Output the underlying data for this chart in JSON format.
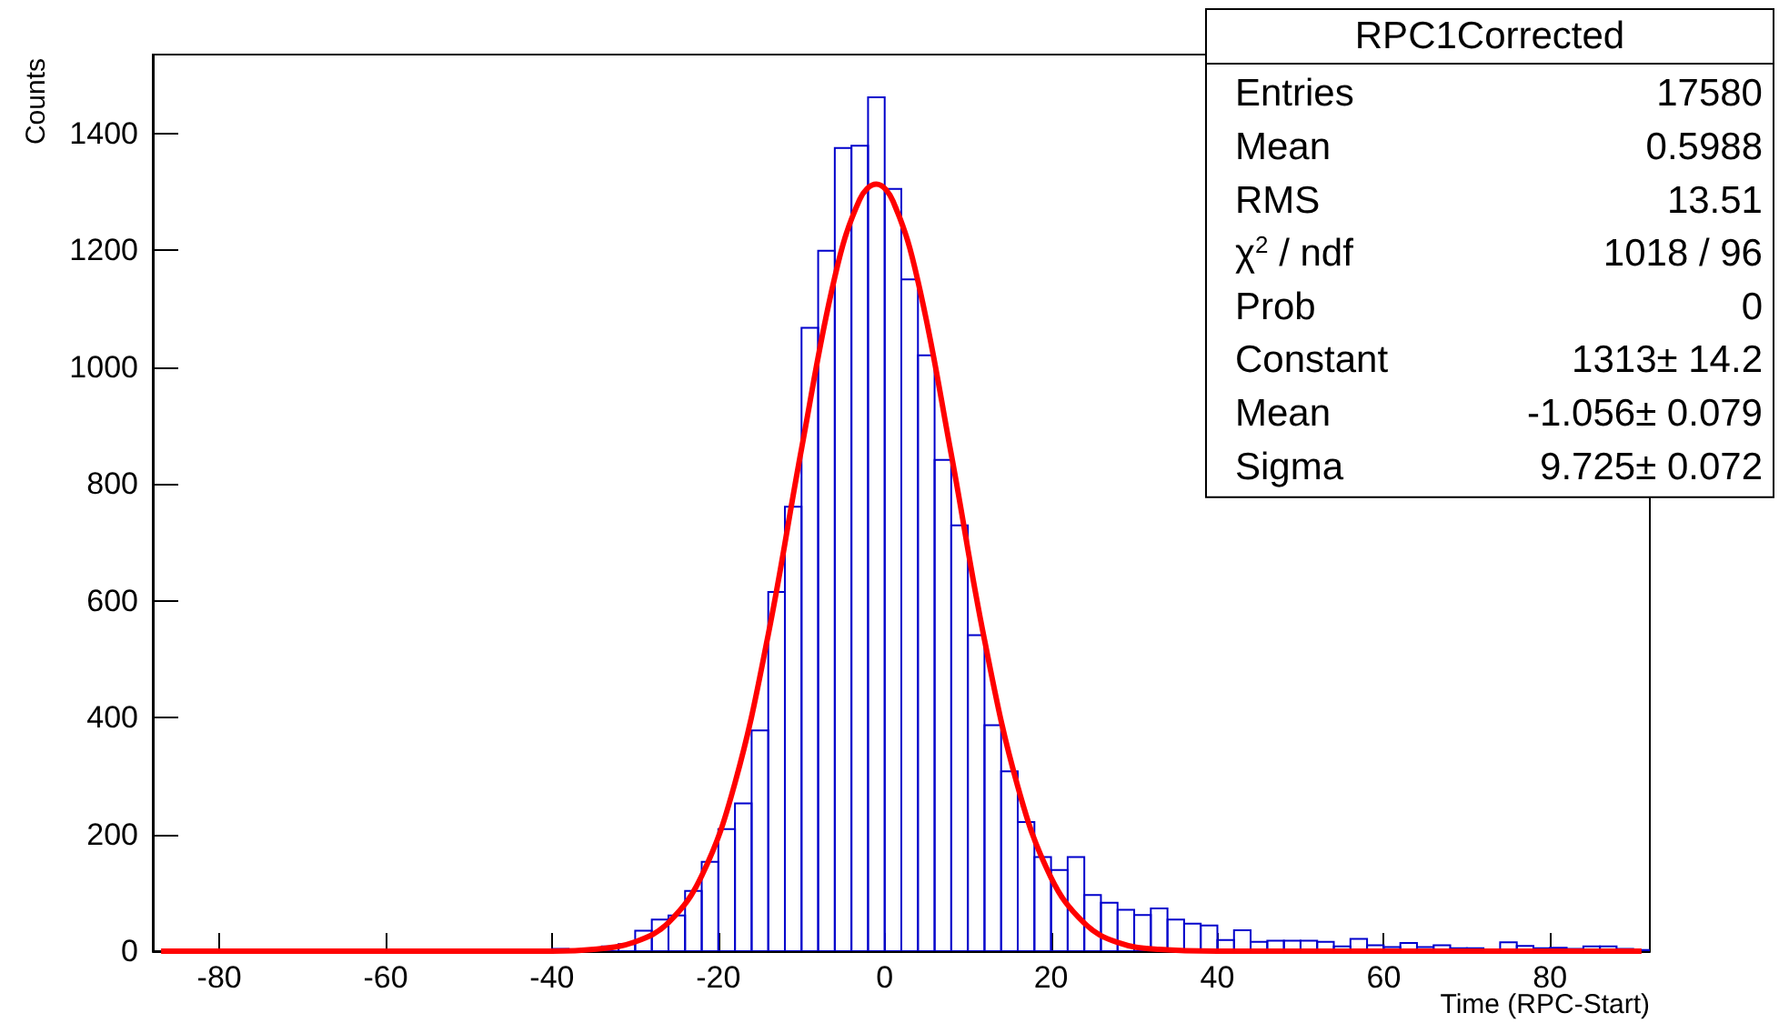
{
  "chart_data": {
    "type": "histogram",
    "title": "RPC1Corrected",
    "xlabel": "Time (RPC-Start)",
    "ylabel": "Counts",
    "bins": [
      -88,
      -86,
      -84,
      -82,
      -80,
      -78,
      -76,
      -74,
      -72,
      -70,
      -68,
      -66,
      -64,
      -62,
      -60,
      -58,
      -56,
      -54,
      -52,
      -50,
      -48,
      -46,
      -44,
      -42,
      -40,
      -38,
      -36,
      -34,
      -32,
      -30,
      -28,
      -26,
      -24,
      -22,
      -20,
      -18,
      -16,
      -14,
      -12,
      -10,
      -8,
      -6,
      -4,
      -2,
      0,
      2,
      4,
      6,
      8,
      10,
      12,
      14,
      16,
      18,
      20,
      22,
      24,
      26,
      28,
      30,
      32,
      34,
      36,
      38,
      40,
      42,
      44,
      46,
      48,
      50,
      52,
      54,
      56,
      58,
      60,
      62,
      64,
      66,
      68,
      70,
      72,
      74,
      76,
      78,
      80,
      82,
      84,
      86,
      88,
      90,
      92
    ],
    "values": [
      null,
      null,
      null,
      null,
      null,
      null,
      null,
      null,
      null,
      null,
      null,
      null,
      null,
      null,
      null,
      null,
      null,
      null,
      null,
      null,
      null,
      null,
      3,
      3,
      4,
      null,
      null,
      8,
      12,
      35,
      54,
      61,
      103,
      153,
      209,
      253,
      378,
      615,
      761,
      1067,
      1199,
      1375,
      1379,
      1462,
      1305,
      1150,
      1020,
      841,
      729,
      541,
      387,
      308,
      221,
      161,
      139,
      161,
      96,
      83,
      71,
      62,
      73,
      54,
      47,
      44,
      19,
      36,
      16,
      18,
      18,
      18,
      16,
      8,
      21,
      10,
      7,
      14,
      7,
      10,
      5,
      5,
      3,
      15,
      9,
      5,
      6,
      4,
      8,
      8,
      4,
      2
    ],
    "color": "#0000cc",
    "series": [
      {
        "type": "line",
        "color": "#ff0000",
        "x": [
          -87,
          -60,
          -40,
          -35,
          -30,
          -26,
          -22,
          -18,
          -14,
          -10,
          -6,
          -3,
          -1,
          1,
          4,
          8,
          12,
          16,
          20,
          24,
          28,
          33,
          40,
          60,
          91
        ],
        "values": [
          0,
          0,
          0,
          3,
          16,
          49,
          129,
          288,
          542,
          860,
          1154,
          1287,
          1313,
          1284,
          1147,
          851,
          533,
          282,
          126,
          48,
          15,
          3,
          0,
          0,
          0
        ]
      }
    ],
    "xlim": [
      -88,
      92
    ],
    "xticks": [
      -80,
      -60,
      -40,
      -20,
      0,
      20,
      40,
      60,
      80
    ],
    "ylim": [
      0,
      1535
    ],
    "yticks": [
      0,
      200,
      400,
      600,
      800,
      1000,
      1200,
      1400
    ],
    "grid": false,
    "annotations": [
      "Entries\t17580",
      "Mean\t0.5988",
      "RMS\t13.51",
      "χ$^{2}$ / ndf\t1018 / 96",
      "Prob\t0",
      "Constant\t1313± 14.2",
      "Mean\t-1.056± 0.079",
      "Sigma\t9.725± 0.072"
    ]
  }
}
